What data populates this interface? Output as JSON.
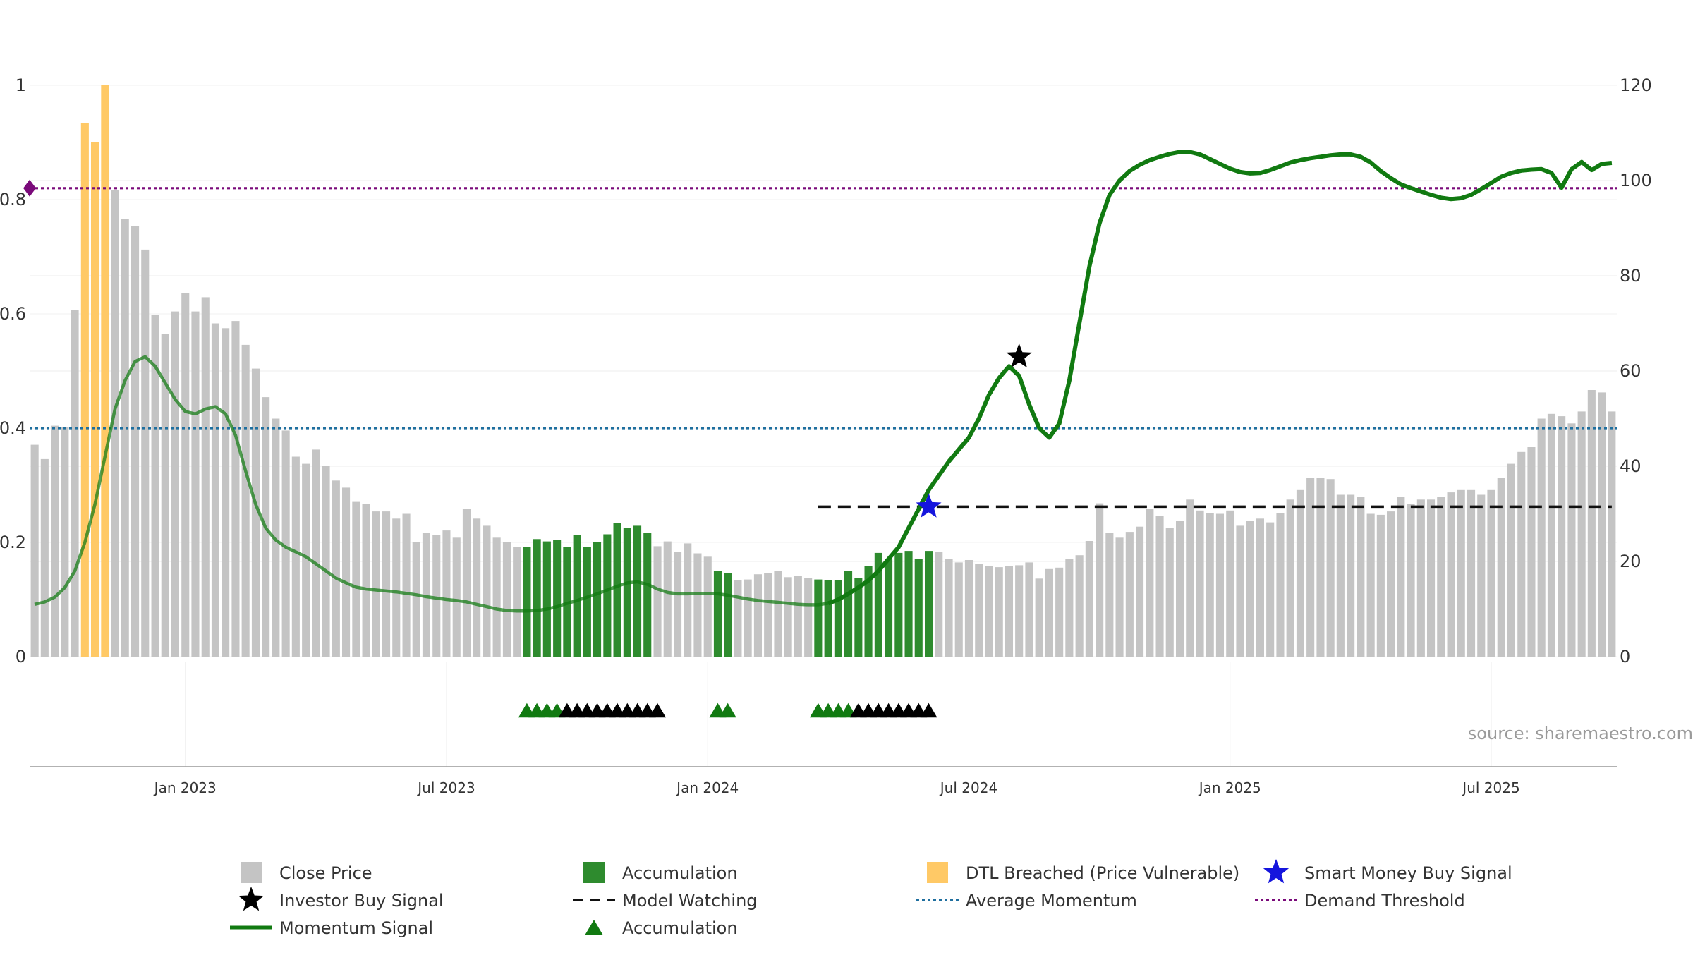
{
  "chart_data": {
    "type": "bar",
    "title": "",
    "source_label": "source: sharemaestro.com",
    "x_axis": {
      "ticks": [
        {
          "label": "Jan 2023",
          "week": 15
        },
        {
          "label": "Jul 2023",
          "week": 41
        },
        {
          "label": "Jan 2024",
          "week": 67
        },
        {
          "label": "Jul 2024",
          "week": 93
        },
        {
          "label": "Jan 2025",
          "week": 119
        },
        {
          "label": "Jul 2025",
          "week": 145
        }
      ],
      "week_range": [
        0,
        157
      ]
    },
    "y_left": {
      "ylim": [
        0,
        1
      ],
      "ticks": [
        "0",
        "0.2",
        "0.4",
        "0.6",
        "0.8",
        "1"
      ]
    },
    "y_right": {
      "ylim": [
        0,
        120
      ],
      "ticks": [
        "0",
        "20",
        "40",
        "60",
        "80",
        "100",
        "120"
      ]
    },
    "grid": true,
    "colors": {
      "close_price": "#c4c4c4",
      "accumulation": "#2e8b2e",
      "dtl_breached": "#ffc966",
      "momentum": "#117a11",
      "average_momentum": "#1f6f9f",
      "demand_threshold": "#7a0a7a",
      "model_watching": "#111111",
      "investor_buy": "#000000",
      "smart_money_buy": "#1515dd"
    },
    "series": [
      {
        "key": "close_price",
        "name": "Close Price",
        "axis": "right",
        "values": [
          44.5,
          41.5,
          48.5,
          48.3,
          72.8,
          112,
          108,
          120,
          98,
          92,
          90.5,
          85.5,
          71.7,
          67.7,
          72.5,
          76.3,
          72.5,
          75.5,
          70,
          69,
          70.5,
          65.5,
          60.5,
          54.5,
          50,
          47.5,
          42,
          40.5,
          43.5,
          40,
          37,
          35.5,
          32.5,
          32,
          30.5,
          30.5,
          29,
          30,
          24,
          26,
          25.5,
          26.5,
          25,
          31,
          29,
          27.5,
          25,
          24,
          23,
          23,
          24.7,
          24.2,
          24.5,
          23,
          25.5,
          23,
          24,
          25.7,
          28,
          27,
          27.5,
          26,
          23.2,
          24.2,
          22,
          23.8,
          21.7,
          21,
          18,
          17.5,
          16,
          16.2,
          17.3,
          17.5,
          18,
          16.7,
          17,
          16.5,
          16.2,
          16,
          16,
          18,
          16.5,
          19,
          21.8,
          20.5,
          21.8,
          22.2,
          20.5,
          22.2,
          22,
          20.5,
          19.8,
          20.3,
          19.5,
          19,
          18.8,
          19,
          19.2,
          19.8,
          16.4,
          18.4,
          18.7,
          20.5,
          21.3,
          24.3,
          32.2,
          26,
          25,
          26.2,
          27.3,
          31,
          29.5,
          27,
          28.5,
          33,
          30.7,
          30.2,
          30,
          30.7,
          27.5,
          28.5,
          29,
          28.2,
          30.2,
          33,
          35,
          37.5,
          37.5,
          37.3,
          34,
          34,
          33.5,
          30,
          29.8,
          30.5,
          33.5,
          32,
          33,
          33,
          33.5,
          34.5,
          35,
          35,
          34,
          35,
          37.5,
          40.5,
          43,
          44,
          50,
          51,
          50.5,
          49,
          51.5,
          56,
          55.5,
          51.5
        ]
      },
      {
        "key": "momentum",
        "name": "Momentum Signal",
        "axis": "right",
        "values": [
          11,
          11.5,
          12.5,
          14.5,
          18,
          24,
          32,
          42,
          52,
          58,
          62,
          63,
          61,
          57.5,
          54,
          51.5,
          51,
          52,
          52.5,
          51,
          46.5,
          39,
          32,
          27,
          24.5,
          23,
          22,
          21,
          19.5,
          18,
          16.5,
          15.5,
          14.6,
          14.2,
          14,
          13.8,
          13.6,
          13.3,
          13,
          12.6,
          12.3,
          12,
          11.8,
          11.5,
          11,
          10.5,
          10,
          9.7,
          9.6,
          9.6,
          9.7,
          10,
          10.5,
          11.2,
          11.8,
          12.5,
          13.2,
          14,
          14.8,
          15.5,
          15.7,
          15.2,
          14.2,
          13.5,
          13.2,
          13.2,
          13.3,
          13.3,
          13.2,
          12.9,
          12.5,
          12.1,
          11.8,
          11.6,
          11.4,
          11.2,
          11,
          10.9,
          10.9,
          11.2,
          12,
          13.2,
          14.5,
          16,
          18,
          20.5,
          23,
          27,
          31,
          35,
          38,
          41,
          43.5,
          46,
          50,
          55,
          58.5,
          61,
          59,
          53,
          48,
          46,
          49,
          58,
          70,
          82,
          91,
          97,
          100,
          102,
          103.3,
          104.3,
          105,
          105.6,
          106,
          106,
          105.5,
          104.5,
          103.5,
          102.5,
          101.8,
          101.5,
          101.6,
          102.2,
          103,
          103.8,
          104.3,
          104.7,
          105,
          105.3,
          105.5,
          105.5,
          105,
          103.8,
          102,
          100.5,
          99.2,
          98.4,
          97.7,
          97,
          96.4,
          96.1,
          96.3,
          97,
          98.2,
          99.5,
          100.8,
          101.6,
          102.1,
          102.3,
          102.4,
          101.6,
          98.5,
          102.4,
          103.9,
          102.2,
          103.5,
          103.7
        ]
      }
    ],
    "highlight_ranges": {
      "dtl_breached": [
        [
          5,
          7
        ]
      ],
      "accumulation": [
        [
          49,
          61
        ],
        [
          68,
          69
        ],
        [
          78,
          89
        ]
      ]
    },
    "reference_lines": [
      {
        "key": "average_momentum",
        "name": "Average Momentum",
        "axis": "left",
        "value": 0.4
      },
      {
        "key": "demand_threshold",
        "name": "Demand Threshold",
        "axis": "left",
        "value": 0.82
      }
    ],
    "model_watching": {
      "name": "Model Watching",
      "value": 31.5,
      "from_week": 78,
      "to_week": 157
    },
    "investor_buy_signals": [
      {
        "week": 98,
        "value": 63
      }
    ],
    "smart_money_buy_signals": [
      {
        "week": 89,
        "value": 31.5
      }
    ],
    "accumulation_markers": {
      "green_weeks": [
        49,
        50,
        51,
        52,
        68,
        69,
        78,
        79,
        80,
        81
      ],
      "black_weeks": [
        53,
        54,
        55,
        56,
        57,
        58,
        59,
        60,
        61,
        62,
        82,
        83,
        84,
        85,
        86,
        87,
        88,
        89
      ]
    },
    "legend": [
      {
        "label": "Close Price",
        "symbol": "square",
        "key": "close_price"
      },
      {
        "label": "Accumulation",
        "symbol": "square",
        "key": "accumulation"
      },
      {
        "label": "DTL Breached (Price Vulnerable)",
        "symbol": "square",
        "key": "dtl_breached"
      },
      {
        "label": "Smart Money Buy Signal",
        "symbol": "star",
        "key": "smart_money_buy"
      },
      {
        "label": "Investor Buy Signal",
        "symbol": "star",
        "key": "investor_buy"
      },
      {
        "label": "Model Watching",
        "symbol": "dash",
        "key": "model_watching"
      },
      {
        "label": "Average Momentum",
        "symbol": "dotted",
        "key": "average_momentum"
      },
      {
        "label": "Demand Threshold",
        "symbol": "dotted",
        "key": "demand_threshold"
      },
      {
        "label": "Momentum Signal",
        "symbol": "line",
        "key": "momentum"
      },
      {
        "label": "Accumulation",
        "symbol": "triangle",
        "key": "momentum"
      }
    ]
  }
}
